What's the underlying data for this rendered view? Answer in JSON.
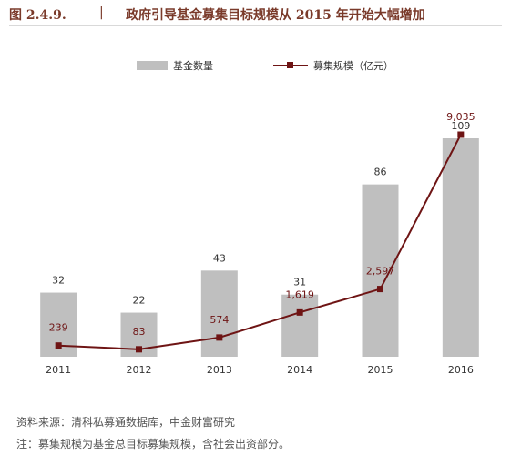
{
  "header": {
    "figure_number": "图 2.4.9.",
    "separator": "|",
    "title": "政府引导基金募集目标规模从 2015 年开始大幅增加"
  },
  "colors": {
    "bar": "#bfbfbf",
    "line": "#6e1414",
    "text": "#333333"
  },
  "chart_data": {
    "type": "bar",
    "categories": [
      "2011",
      "2012",
      "2013",
      "2014",
      "2015",
      "2016"
    ],
    "series": [
      {
        "name": "基金数量",
        "type": "bar",
        "values": [
          32,
          22,
          43,
          31,
          86,
          109
        ]
      },
      {
        "name": "募集规模（亿元）",
        "type": "line",
        "values": [
          239,
          83,
          574,
          1619,
          2597,
          9035
        ],
        "labels": [
          "239",
          "83",
          "574",
          "1,619",
          "2,597",
          "9,035"
        ]
      }
    ],
    "legend_position": "top-center",
    "grid": false
  },
  "footer": {
    "source": "资料来源：清科私募通数据库，中金财富研究",
    "note": "注：募集规模为基金总目标募集规模，含社会出资部分。"
  }
}
